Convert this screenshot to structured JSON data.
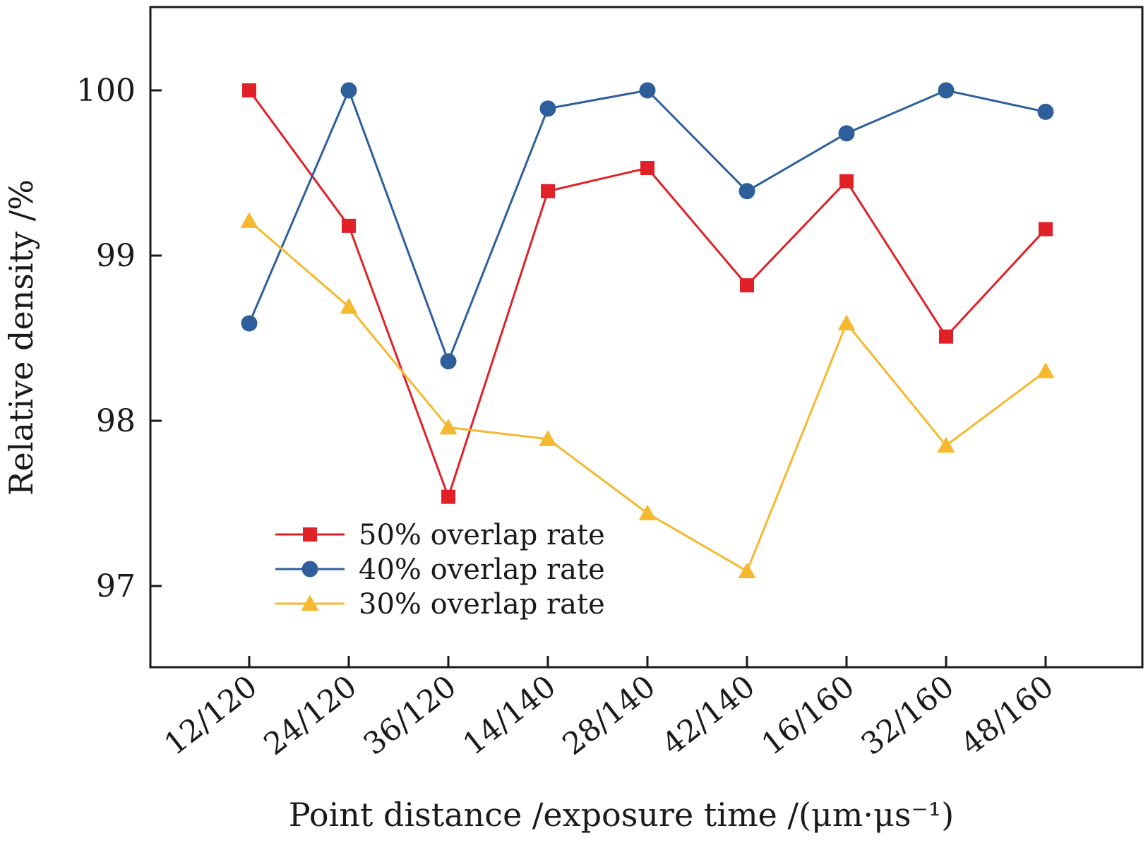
{
  "chart_data": {
    "type": "line",
    "categories": [
      "12/120",
      "24/120",
      "36/120",
      "14/140",
      "28/140",
      "42/140",
      "16/160",
      "32/160",
      "48/160"
    ],
    "series": [
      {
        "name": "50% overlap rate",
        "color": "#e02127",
        "marker": "square",
        "values": [
          100.0,
          99.18,
          97.54,
          99.39,
          99.53,
          98.82,
          99.45,
          98.51,
          99.16
        ]
      },
      {
        "name": "40% overlap rate",
        "color": "#2f5f9b",
        "marker": "circle",
        "values": [
          98.59,
          100.0,
          98.36,
          99.89,
          100.0,
          99.39,
          99.74,
          100.0,
          99.87
        ]
      },
      {
        "name": "30% overlap rate",
        "color": "#f5b82e",
        "marker": "triangle",
        "values": [
          99.21,
          98.69,
          97.96,
          97.89,
          97.44,
          97.09,
          98.59,
          97.85,
          98.3
        ]
      }
    ],
    "xlabel": "Point distance /exposure time /(μm·μs⁻¹)",
    "ylabel": "Relative density /%",
    "yticks": [
      97,
      98,
      99,
      100
    ],
    "ylim": [
      96.5,
      100.5
    ],
    "legend_position": "bottom-left",
    "grid": false
  }
}
